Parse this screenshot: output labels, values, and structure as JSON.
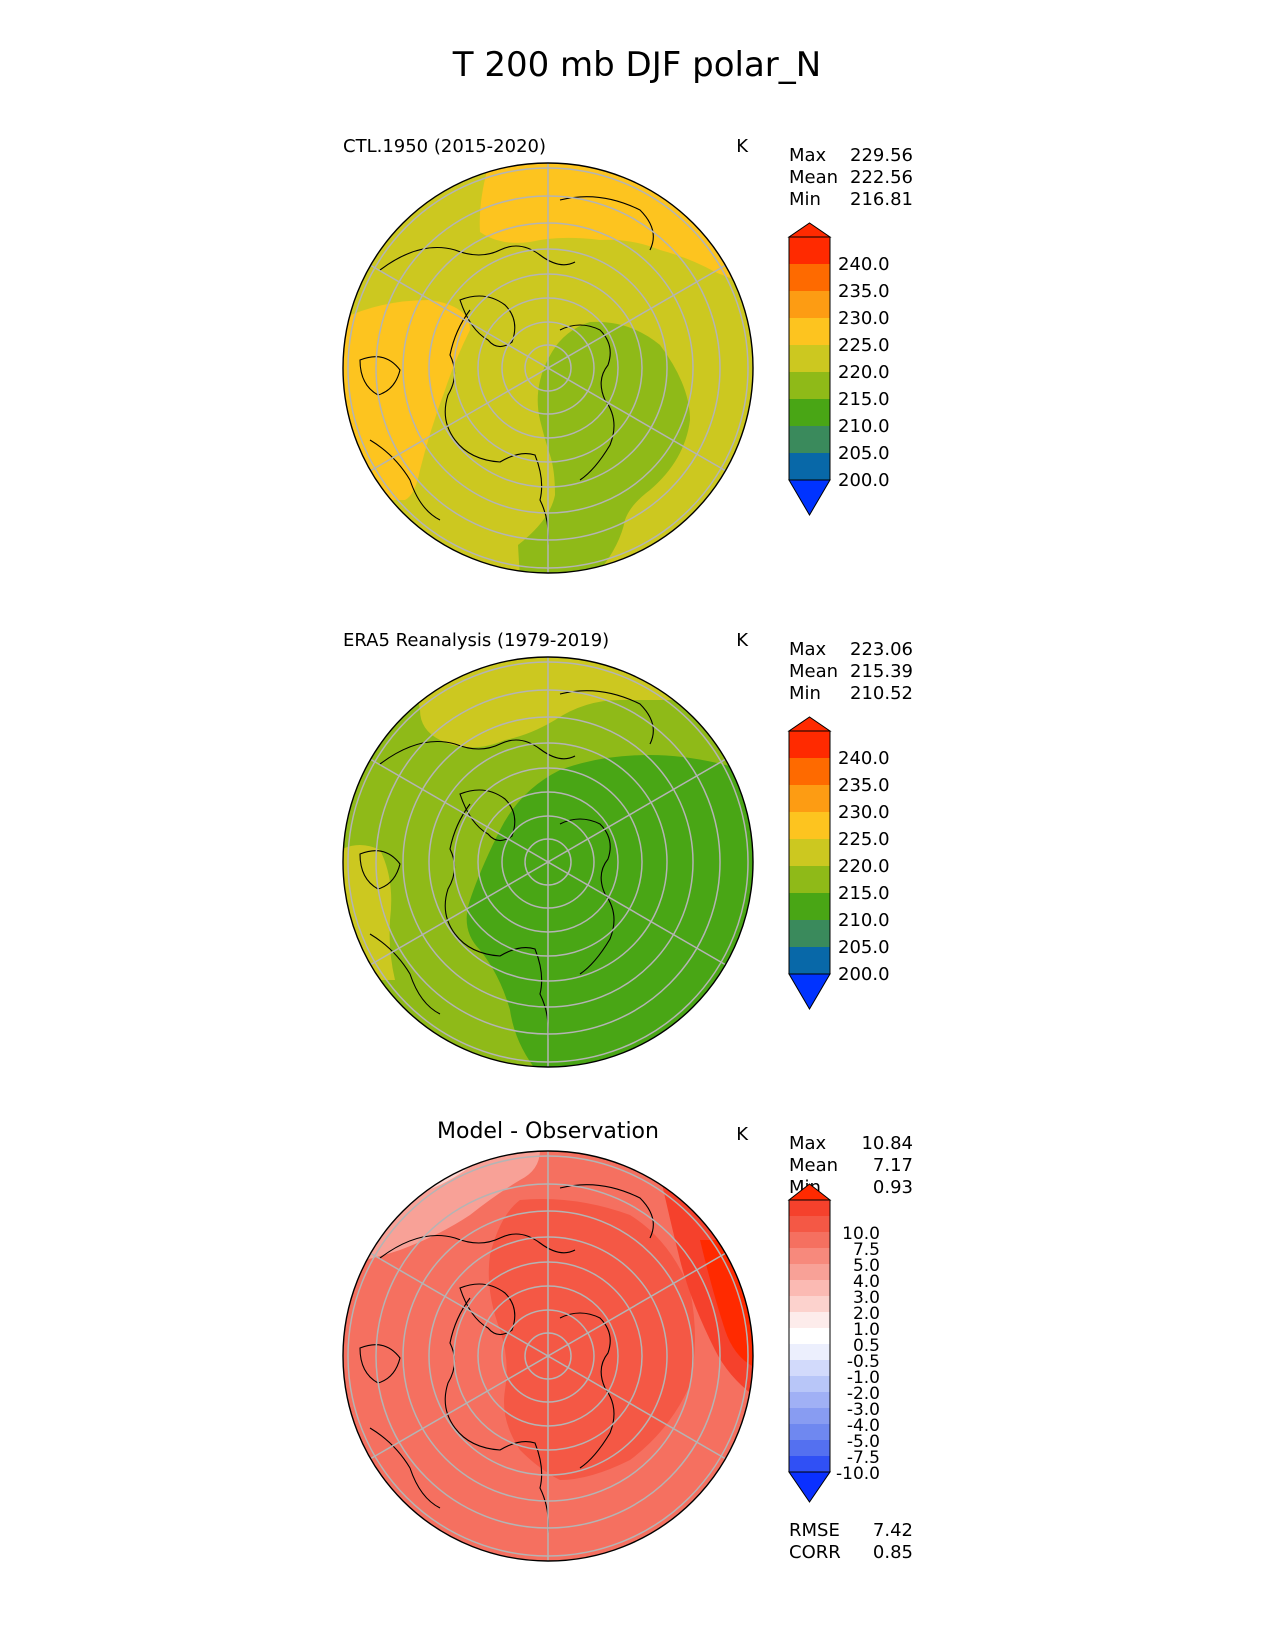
{
  "figure": {
    "title": "T 200 mb DJF polar_N"
  },
  "colors": {
    "abs_levels": [
      "#0033ff",
      "#0868a8",
      "#3a8a5c",
      "#49a615",
      "#8fba18",
      "#ccc820",
      "#fdc41f",
      "#fd9c13",
      "#fe6a00",
      "#ff2a00"
    ],
    "diff_levels": [
      "#0a30ff",
      "#3050f5",
      "#5470f0",
      "#6f88f0",
      "#889cf2",
      "#a0b0f5",
      "#b8c6f8",
      "#d2dafb",
      "#eceffd",
      "#ffffff",
      "#fdeceb",
      "#fcd2cd",
      "#fbbab3",
      "#f8a197",
      "#f7897c",
      "#f57060",
      "#f45845",
      "#f5412c",
      "#ff2a00"
    ],
    "land_outline": "#000000",
    "grid": "#b4b4b4"
  },
  "chart_data": [
    {
      "type": "heatmap",
      "panel_title": "CTL.1950 (2015-2020)",
      "units": "K",
      "projection": "north-polar-stereographic",
      "stats": [
        {
          "label": "Max",
          "value": "229.56"
        },
        {
          "label": "Mean",
          "value": "222.56"
        },
        {
          "label": "Min",
          "value": "216.81"
        }
      ],
      "colorbar": {
        "levels": [
          195,
          200,
          205,
          210,
          215,
          220,
          225,
          230,
          235,
          240,
          245
        ],
        "tick_labels": [
          "200.0",
          "205.0",
          "210.0",
          "215.0",
          "220.0",
          "225.0",
          "230.0",
          "235.0",
          "240.0"
        ],
        "extend": "both"
      },
      "field_regions": [
        {
          "value": 227.5,
          "description": "Pacific / Alaska sector and Atlantic–Eurasia rim"
        },
        {
          "value": 222.5,
          "description": "Canada, Arctic Ocean, Greenland"
        },
        {
          "value": 217.5,
          "description": "Siberia / Eurasian Arctic"
        }
      ]
    },
    {
      "type": "heatmap",
      "panel_title": "ERA5 Reanalysis (1979-2019)",
      "units": "K",
      "projection": "north-polar-stereographic",
      "stats": [
        {
          "label": "Max",
          "value": "223.06"
        },
        {
          "label": "Mean",
          "value": "215.39"
        },
        {
          "label": "Min",
          "value": "210.52"
        }
      ],
      "colorbar": {
        "levels": [
          195,
          200,
          205,
          210,
          215,
          220,
          225,
          230,
          235,
          240,
          245
        ],
        "tick_labels": [
          "200.0",
          "205.0",
          "210.0",
          "215.0",
          "220.0",
          "225.0",
          "230.0",
          "235.0",
          "240.0"
        ],
        "extend": "both"
      },
      "field_regions": [
        {
          "value": 222.5,
          "description": "North Pacific and North Atlantic rim"
        },
        {
          "value": 217.5,
          "description": "Canada, Greenland, Arctic margin"
        },
        {
          "value": 212.5,
          "description": "Arctic Ocean and Siberia"
        }
      ]
    },
    {
      "type": "heatmap",
      "panel_title": "Model - Observation",
      "units": "K",
      "projection": "north-polar-stereographic",
      "stats": [
        {
          "label": "Max",
          "value": "10.84"
        },
        {
          "label": "Mean",
          "value": "7.17"
        },
        {
          "label": "Min",
          "value": "0.93"
        }
      ],
      "footer_stats": [
        {
          "label": "RMSE",
          "value": "7.42"
        },
        {
          "label": "CORR",
          "value": "0.85"
        }
      ],
      "colorbar": {
        "levels": [
          -12.5,
          -10,
          -7.5,
          -5,
          -4,
          -3,
          -2,
          -1,
          -0.5,
          0.5,
          1,
          2,
          3,
          4,
          5,
          7.5,
          10,
          12.5
        ],
        "tick_labels": [
          "10.0",
          "7.5",
          "5.0",
          "4.0",
          "3.0",
          "2.0",
          "1.0",
          "0.5",
          "-0.5",
          "-1.0",
          "-2.0",
          "-3.0",
          "-4.0",
          "-5.0",
          "-7.5",
          "-10.0"
        ],
        "extend": "both"
      },
      "field_regions": [
        {
          "value": 6.0,
          "description": "most of the hemisphere"
        },
        {
          "value": 8.5,
          "description": "central Arctic and Siberia"
        },
        {
          "value": 11.0,
          "description": "Siberia / North Pacific sector"
        },
        {
          "value": 3.5,
          "description": "Bering Sea / Alaska"
        }
      ]
    }
  ]
}
